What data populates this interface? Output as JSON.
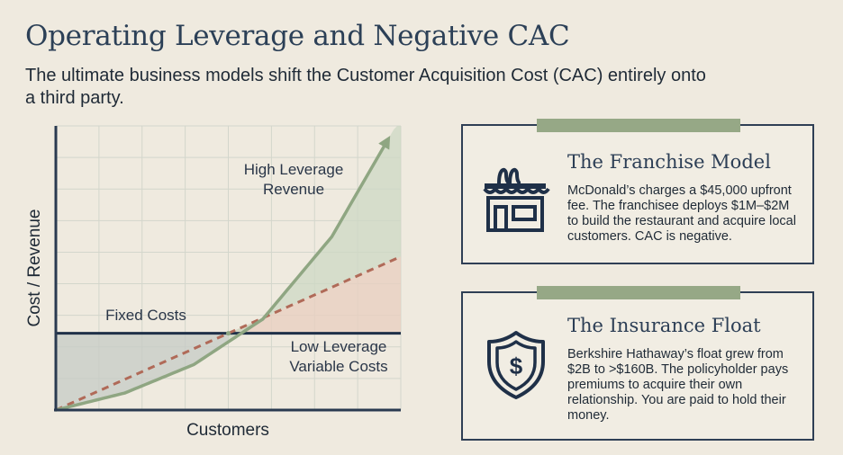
{
  "title": "Operating Leverage and Negative CAC",
  "subtitle": "The ultimate business models shift the Customer Acquisition Cost (CAC) entirely onto a third party.",
  "chart_data": {
    "type": "line",
    "title": "",
    "xlabel": "Customers",
    "ylabel": "Cost / Revenue",
    "xlim": [
      0,
      10
    ],
    "ylim": [
      0,
      10
    ],
    "grid": true,
    "series": [
      {
        "name": "Fixed Costs",
        "style": "solid",
        "color": "#1f3048",
        "x": [
          0,
          10
        ],
        "y": [
          2.7,
          2.7
        ]
      },
      {
        "name": "Low Leverage Variable Costs",
        "style": "dashed",
        "color": "#b06a58",
        "x": [
          0,
          10
        ],
        "y": [
          0,
          5.4
        ]
      },
      {
        "name": "High Leverage Revenue",
        "style": "solid",
        "arrow": true,
        "color": "#8fa682",
        "x": [
          0,
          2,
          4,
          6,
          8,
          10
        ],
        "y": [
          0,
          0.6,
          1.6,
          3.2,
          6.1,
          10.3
        ]
      }
    ],
    "labels": {
      "high_leverage_line1": "High Leverage",
      "high_leverage_line2": "Revenue",
      "fixed_costs": "Fixed Costs",
      "low_leverage_line1": "Low Leverage",
      "low_leverage_line2": "Variable Costs"
    }
  },
  "cards": [
    {
      "title": "The Franchise Model",
      "icon": "storefront-icon",
      "body": "McDonald’s charges a $45,000 upfront fee. The franchisee deploys $1M–$2M to build the restaurant and acquire local customers. CAC is negative."
    },
    {
      "title": "The Insurance Float",
      "icon": "shield-dollar-icon",
      "body": "Berkshire Hathaway’s float grew from $2B to >$160B. The policyholder pays premiums to acquire their own relationship. You are paid to hold their money."
    }
  ],
  "colors": {
    "background": "#efeadf",
    "navy": "#1f3048",
    "sage": "#8fa682",
    "terracotta": "#b06a58"
  }
}
